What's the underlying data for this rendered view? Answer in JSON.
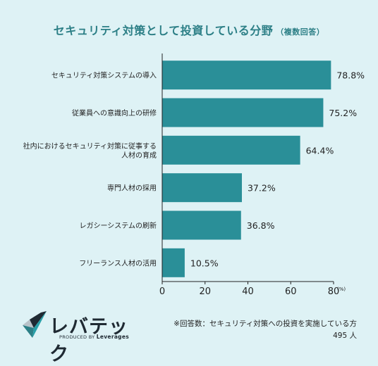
{
  "title": "セキュリティ対策として投資している分野",
  "title_sub": "（複数回答）",
  "chart_data": {
    "type": "bar",
    "orientation": "horizontal",
    "categories": [
      [
        "セキュリティ対策システムの導入"
      ],
      [
        "従業員への意識向上の研修"
      ],
      [
        "社内におけるセキュリティ対策に従事する",
        "人材の育成"
      ],
      [
        "専門人材の採用"
      ],
      [
        "レガシーシステムの刷新"
      ],
      [
        "フリーランス人材の活用"
      ]
    ],
    "values": [
      78.8,
      75.2,
      64.4,
      37.2,
      36.8,
      10.5
    ],
    "value_labels": [
      "78.8%",
      "75.2%",
      "64.4%",
      "37.2%",
      "36.8%",
      "10.5%"
    ],
    "xlim": [
      0,
      80
    ],
    "xticks": [
      0,
      20,
      40,
      60,
      80
    ],
    "x_unit": "(%)",
    "bar_color": "#2a8f98",
    "grid": false
  },
  "logo": {
    "name": "レバテック",
    "tagline_prefix": "PRODUCED BY",
    "tagline_brand": "Leverages"
  },
  "note": {
    "line1": "※回答数：セキュリティ対策への投資を実施している方",
    "line2": "495 人"
  }
}
